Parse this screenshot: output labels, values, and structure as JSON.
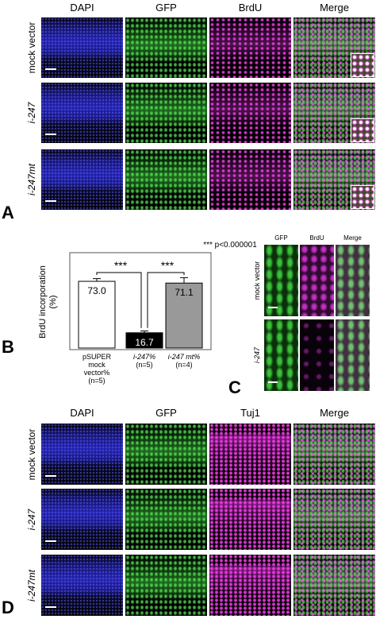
{
  "panel_a": {
    "label": "A",
    "columns": [
      "DAPI",
      "GFP",
      "BrdU",
      "Merge"
    ],
    "rows": [
      "mock vector",
      "i-247",
      "i-247mt"
    ]
  },
  "chart_data": {
    "type": "bar",
    "panel_label": "B",
    "y_label": "BrdU incorporation (%)",
    "categories": [
      "pSUPER mock vector%",
      "i-247%",
      "i-247 mt%"
    ],
    "sample_sizes": [
      "(n=5)",
      "(n=5)",
      "(n=4)"
    ],
    "values": [
      73.0,
      16.7,
      71.1
    ],
    "value_labels": [
      "73.0",
      "16.7",
      "71.1"
    ],
    "errors": [
      3,
      2,
      6
    ],
    "colors": [
      "#ffffff",
      "#000000",
      "#999999"
    ],
    "ylim": [
      0,
      100
    ],
    "significance": [
      "***",
      "***"
    ],
    "annotation": "*** p<0.000001"
  },
  "panel_c": {
    "label": "C",
    "columns": [
      "GFP",
      "BrdU",
      "Merge"
    ],
    "rows": [
      "mock vector",
      "i-247"
    ]
  },
  "panel_d": {
    "label": "D",
    "columns": [
      "DAPI",
      "GFP",
      "Tuj1",
      "Merge"
    ],
    "rows": [
      "mock vector",
      "i-247",
      "i-247mt"
    ]
  }
}
